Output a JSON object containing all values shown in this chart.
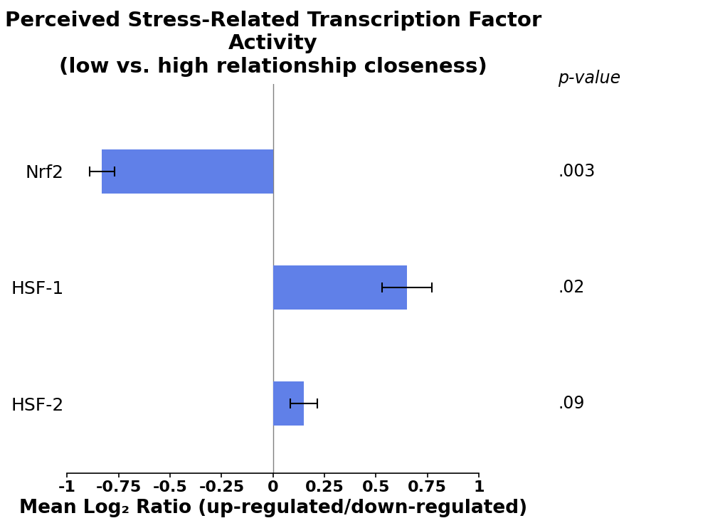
{
  "title_line1": "Perceived Stress-Related Transcription Factor",
  "title_line2": "Activity",
  "title_line3": "(low vs. high relationship closeness)",
  "categories": [
    "Nrf2",
    "HSF-1",
    "HSF-2"
  ],
  "values": [
    -0.83,
    0.65,
    0.15
  ],
  "errors": [
    0.06,
    0.12,
    0.065
  ],
  "p_values": [
    ".003",
    ".02",
    ".09"
  ],
  "bar_color": "#6080E8",
  "xlabel": "Mean Log₂ Ratio (up-regulated/down-regulated)",
  "xlim": [
    -1,
    1
  ],
  "xticks": [
    -1,
    -0.75,
    -0.5,
    -0.25,
    0,
    0.25,
    0.5,
    0.75,
    1
  ],
  "xtick_labels": [
    "-1",
    "-0.75",
    "-0.5",
    "-0.25",
    "0",
    "0.25",
    "0.5",
    "0.75",
    "1"
  ],
  "background_color": "#ffffff",
  "p_value_label": "p-value",
  "title_fontsize": 21,
  "label_fontsize": 19,
  "tick_fontsize": 16,
  "pval_fontsize": 17,
  "ytick_fontsize": 18,
  "bar_height": 0.38
}
